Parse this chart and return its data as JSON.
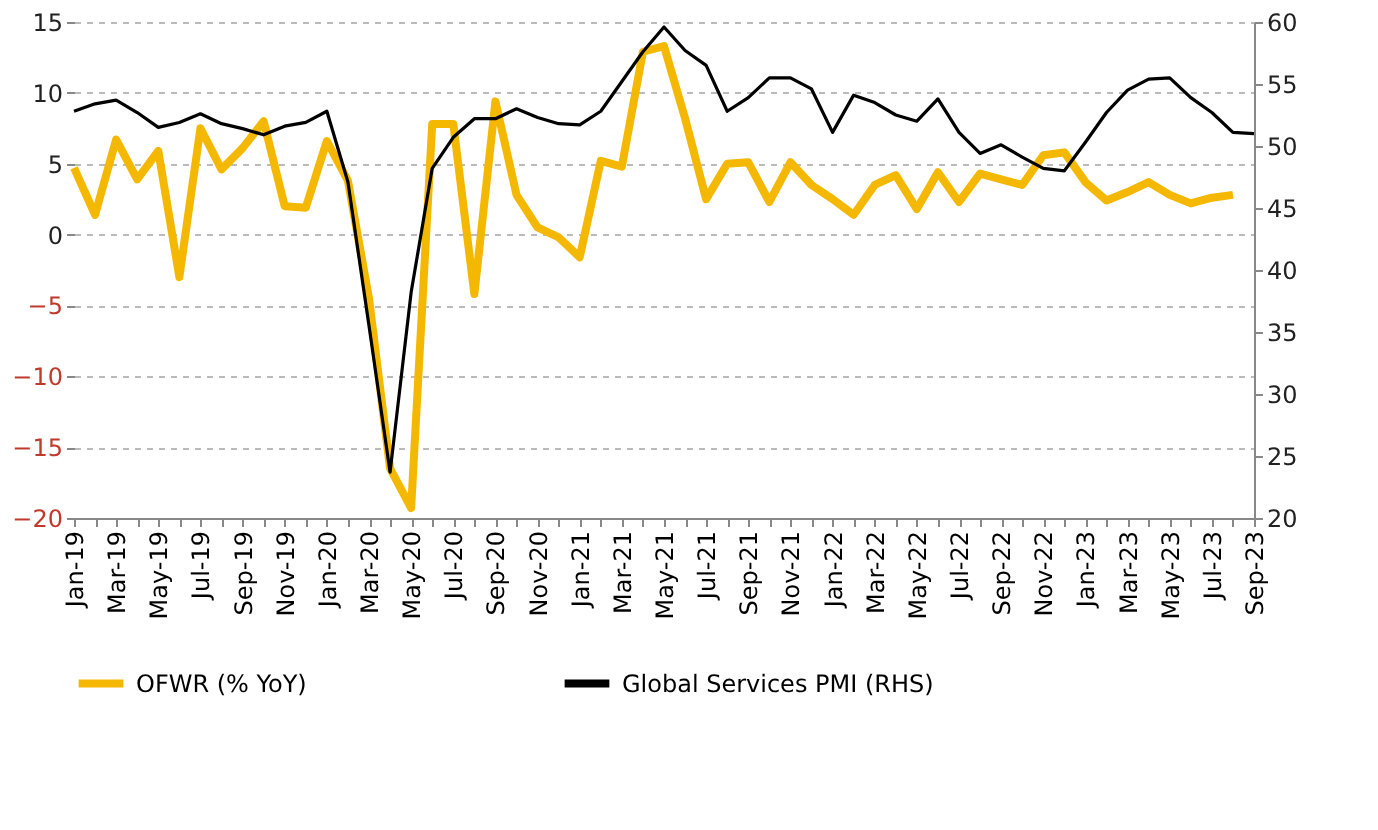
{
  "chart_data": {
    "type": "line",
    "categories": [
      "Jan-19",
      null,
      "Mar-19",
      null,
      "May-19",
      null,
      "Jul-19",
      null,
      "Sep-19",
      null,
      "Nov-19",
      null,
      "Jan-20",
      null,
      "Mar-20",
      null,
      "May-20",
      null,
      "Jul-20",
      null,
      "Sep-20",
      null,
      "Nov-20",
      null,
      "Jan-21",
      null,
      "Mar-21",
      null,
      "May-21",
      null,
      "Jul-21",
      null,
      "Sep-21",
      null,
      "Nov-21",
      null,
      "Jan-22",
      null,
      "Mar-22",
      null,
      "May-22",
      null,
      "Jul-22",
      null,
      "Sep-22",
      null,
      "Nov-22",
      null,
      "Jan-23",
      null,
      "Mar-23",
      null,
      "May-23",
      null,
      "Jul-23",
      null,
      "Sep-23"
    ],
    "series": [
      {
        "name": "OFWR (% YoY)",
        "color": "#f5b800",
        "values": [
          4.7,
          1.4,
          6.7,
          3.9,
          5.9,
          -3.0,
          7.5,
          4.6,
          6.1,
          8.0,
          2.0,
          1.9,
          6.6,
          3.8,
          -4.5,
          -16.5,
          -19.3,
          7.8,
          7.8,
          -4.2,
          9.4,
          2.8,
          0.5,
          -0.2,
          -1.6,
          5.2,
          4.8,
          12.9,
          13.3,
          8.2,
          2.5,
          5.0,
          5.1,
          2.3,
          5.1,
          3.5,
          2.5,
          1.4,
          3.5,
          4.2,
          1.8,
          4.4,
          2.3,
          4.3,
          3.9,
          3.5,
          5.6,
          5.8,
          3.7,
          2.4,
          3.0,
          3.7,
          2.8,
          2.2,
          2.6,
          2.8,
          null
        ]
      },
      {
        "name": "Global Services PMI (RHS)",
        "color": "#000000",
        "axis": "y2",
        "values": [
          52.8,
          53.4,
          53.7,
          52.7,
          51.5,
          51.9,
          52.6,
          51.8,
          51.4,
          50.9,
          51.6,
          51.9,
          52.8,
          47.1,
          35.5,
          23.7,
          38.2,
          48.2,
          50.7,
          52.2,
          52.2,
          53.0,
          52.3,
          51.8,
          51.7,
          52.8,
          55.2,
          57.6,
          59.6,
          57.7,
          56.5,
          52.8,
          53.9,
          55.5,
          55.5,
          54.6,
          51.1,
          54.1,
          53.5,
          52.5,
          52.0,
          53.8,
          51.1,
          49.4,
          50.1,
          49.1,
          48.2,
          48.0,
          50.3,
          52.7,
          54.5,
          55.4,
          55.5,
          53.9,
          52.7,
          51.1,
          51.0
        ]
      }
    ],
    "ylim": [
      -20,
      15
    ],
    "yticks": [
      -20,
      -15,
      -10,
      -5,
      0,
      5,
      10,
      15
    ],
    "y2lim": [
      20,
      60
    ],
    "y2ticks": [
      20,
      25,
      30,
      35,
      40,
      45,
      50,
      55,
      60
    ],
    "grid": "y",
    "legend": "bottom"
  }
}
